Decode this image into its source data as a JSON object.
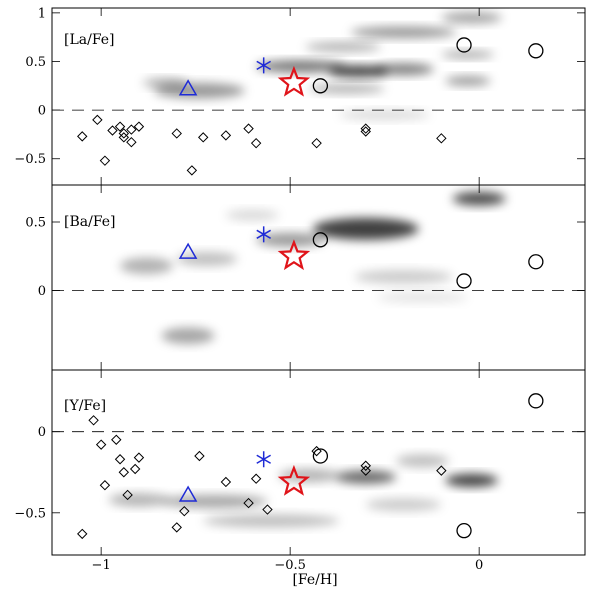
{
  "chart_data": {
    "type": "scatter",
    "xlabel": "[Fe/H]",
    "xlim": [
      -1.13,
      0.28
    ],
    "xticks": [
      -1,
      -0.5,
      0
    ],
    "xtick_labels": [
      "−1",
      "−0.5",
      "0"
    ],
    "colors": {
      "triangle": "#1f2bd6",
      "asterisk": "#1f2bd6",
      "star": "#e0141a",
      "diamond": "#000000",
      "circle": "#000000",
      "density": "#000000"
    },
    "panels": [
      {
        "label": "[La/Fe]",
        "ylim": [
          -0.77,
          1.05
        ],
        "yticks": [
          -0.5,
          0,
          0.5,
          1
        ],
        "ytick_labels": [
          "−0.5",
          "0",
          "0.5",
          "1"
        ],
        "reference_line_y": 0,
        "diamonds": {
          "x": [
            -1.05,
            -1.01,
            -0.99,
            -0.97,
            -0.95,
            -0.94,
            -0.94,
            -0.92,
            -0.92,
            -0.9,
            -0.8,
            -0.76,
            -0.73,
            -0.67,
            -0.61,
            -0.59,
            -0.43,
            -0.3,
            -0.3,
            -0.1
          ],
          "y": [
            -0.27,
            -0.1,
            -0.52,
            -0.21,
            -0.17,
            -0.24,
            -0.28,
            -0.2,
            -0.33,
            -0.17,
            -0.24,
            -0.62,
            -0.28,
            -0.26,
            -0.19,
            -0.34,
            -0.34,
            -0.19,
            -0.22,
            -0.29
          ]
        },
        "circles": {
          "x": [
            -0.42,
            -0.04,
            0.15
          ],
          "y": [
            0.25,
            0.67,
            0.61
          ]
        },
        "triangle": {
          "x": -0.77,
          "y": 0.22
        },
        "asterisk": {
          "x": -0.57,
          "y": 0.46
        },
        "star": {
          "x": -0.49,
          "y": 0.28
        },
        "density_blobs": [
          {
            "x": -0.74,
            "y": 0.2,
            "sx": 0.12,
            "sy": 0.08,
            "a": 0.4
          },
          {
            "x": -0.83,
            "y": 0.28,
            "sx": 0.06,
            "sy": 0.05,
            "a": 0.3
          },
          {
            "x": -0.47,
            "y": 0.45,
            "sx": 0.12,
            "sy": 0.06,
            "a": 0.55
          },
          {
            "x": -0.32,
            "y": 0.4,
            "sx": 0.08,
            "sy": 0.06,
            "a": 0.75
          },
          {
            "x": -0.2,
            "y": 0.42,
            "sx": 0.08,
            "sy": 0.06,
            "a": 0.5
          },
          {
            "x": -0.36,
            "y": 0.65,
            "sx": 0.1,
            "sy": 0.05,
            "a": 0.3
          },
          {
            "x": -0.2,
            "y": 0.8,
            "sx": 0.14,
            "sy": 0.06,
            "a": 0.4
          },
          {
            "x": -0.02,
            "y": 0.95,
            "sx": 0.08,
            "sy": 0.06,
            "a": 0.35
          },
          {
            "x": -0.35,
            "y": 0.22,
            "sx": 0.1,
            "sy": 0.05,
            "a": 0.3
          },
          {
            "x": -0.25,
            "y": -0.05,
            "sx": 0.12,
            "sy": 0.05,
            "a": 0.15
          },
          {
            "x": -0.03,
            "y": 0.3,
            "sx": 0.06,
            "sy": 0.05,
            "a": 0.4
          },
          {
            "x": -0.03,
            "y": 0.57,
            "sx": 0.07,
            "sy": 0.04,
            "a": 0.35
          }
        ]
      },
      {
        "label": "[Ba/Fe]",
        "ylim": [
          -0.58,
          0.77
        ],
        "yticks": [
          0,
          0.5
        ],
        "ytick_labels": [
          "0",
          "0.5"
        ],
        "reference_line_y": 0,
        "diamonds": {
          "x": [],
          "y": []
        },
        "circles": {
          "x": [
            -0.42,
            -0.04,
            0.15
          ],
          "y": [
            0.37,
            0.07,
            0.21
          ]
        },
        "triangle": {
          "x": -0.77,
          "y": 0.28
        },
        "asterisk": {
          "x": -0.57,
          "y": 0.41
        },
        "star": {
          "x": -0.49,
          "y": 0.25
        },
        "density_blobs": [
          {
            "x": -0.3,
            "y": 0.45,
            "sx": 0.14,
            "sy": 0.08,
            "a": 0.75
          },
          {
            "x": -0.5,
            "y": 0.37,
            "sx": 0.09,
            "sy": 0.05,
            "a": 0.4
          },
          {
            "x": -0.88,
            "y": 0.18,
            "sx": 0.07,
            "sy": 0.06,
            "a": 0.3
          },
          {
            "x": -0.72,
            "y": 0.23,
            "sx": 0.08,
            "sy": 0.05,
            "a": 0.25
          },
          {
            "x": -0.77,
            "y": -0.33,
            "sx": 0.07,
            "sy": 0.06,
            "a": 0.35
          },
          {
            "x": 0.0,
            "y": 0.67,
            "sx": 0.07,
            "sy": 0.05,
            "a": 0.7
          },
          {
            "x": -0.2,
            "y": 0.1,
            "sx": 0.13,
            "sy": 0.05,
            "a": 0.2
          },
          {
            "x": -0.6,
            "y": 0.55,
            "sx": 0.07,
            "sy": 0.04,
            "a": 0.15
          },
          {
            "x": -0.15,
            "y": -0.05,
            "sx": 0.12,
            "sy": 0.04,
            "a": 0.1
          }
        ]
      },
      {
        "label": "[Y/Fe]",
        "ylim": [
          -0.76,
          0.38
        ],
        "yticks": [
          -0.5,
          0
        ],
        "ytick_labels": [
          "−0.5",
          "0"
        ],
        "reference_line_y": 0,
        "diamonds": {
          "x": [
            -1.05,
            -1.02,
            -1.0,
            -0.99,
            -0.96,
            -0.95,
            -0.94,
            -0.93,
            -0.91,
            -0.9,
            -0.8,
            -0.78,
            -0.74,
            -0.67,
            -0.61,
            -0.59,
            -0.56,
            -0.43,
            -0.3,
            -0.3,
            -0.1
          ],
          "y": [
            -0.63,
            0.07,
            -0.08,
            -0.33,
            -0.05,
            -0.17,
            -0.25,
            -0.39,
            -0.23,
            -0.16,
            -0.59,
            -0.49,
            -0.15,
            -0.31,
            -0.44,
            -0.29,
            -0.48,
            -0.12,
            -0.21,
            -0.24,
            -0.24
          ]
        },
        "circles": {
          "x": [
            -0.42,
            -0.04,
            0.15
          ],
          "y": [
            -0.15,
            -0.61,
            0.19
          ]
        },
        "triangle": {
          "x": -0.77,
          "y": -0.39
        },
        "asterisk": {
          "x": -0.57,
          "y": -0.17
        },
        "star": {
          "x": -0.49,
          "y": -0.31
        },
        "density_blobs": [
          {
            "x": -0.3,
            "y": -0.28,
            "sx": 0.08,
            "sy": 0.04,
            "a": 0.6
          },
          {
            "x": -0.02,
            "y": -0.3,
            "sx": 0.07,
            "sy": 0.04,
            "a": 0.75
          },
          {
            "x": -0.45,
            "y": -0.27,
            "sx": 0.08,
            "sy": 0.04,
            "a": 0.3
          },
          {
            "x": -0.7,
            "y": -0.43,
            "sx": 0.14,
            "sy": 0.04,
            "a": 0.35
          },
          {
            "x": -0.9,
            "y": -0.42,
            "sx": 0.08,
            "sy": 0.04,
            "a": 0.3
          },
          {
            "x": -0.55,
            "y": -0.55,
            "sx": 0.18,
            "sy": 0.04,
            "a": 0.25
          },
          {
            "x": -0.15,
            "y": -0.18,
            "sx": 0.07,
            "sy": 0.04,
            "a": 0.25
          },
          {
            "x": -0.2,
            "y": -0.45,
            "sx": 0.1,
            "sy": 0.04,
            "a": 0.2
          }
        ]
      }
    ]
  }
}
